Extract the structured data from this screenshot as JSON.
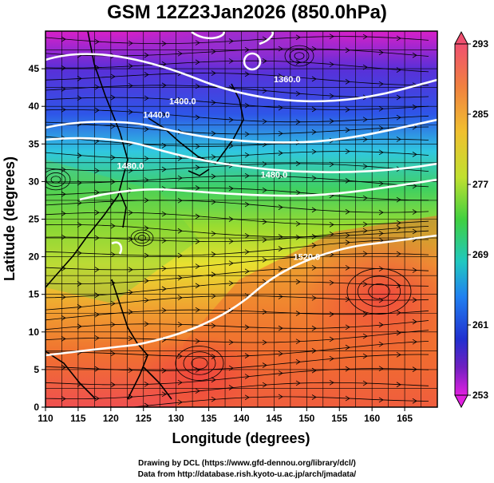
{
  "title": "GSM 12Z23Jan2026 (850.0hPa)",
  "map": {
    "x_axis": {
      "label": "Longitude (degrees)",
      "range": [
        110,
        170
      ],
      "ticks": [
        "110",
        "115",
        "120",
        "125",
        "130",
        "135",
        "140",
        "145",
        "150",
        "155",
        "160",
        "165"
      ]
    },
    "y_axis": {
      "label": "Latitude (degrees)",
      "range": [
        0,
        50
      ],
      "ticks": [
        "0",
        "5",
        "10",
        "15",
        "20",
        "25",
        "30",
        "35",
        "40",
        "45"
      ]
    },
    "grid_spacing_deg": 2.5,
    "field": "temperature shaded, geopotential height contours (white), streamlines (black)",
    "contour_labels": [
      {
        "text": "1360.0",
        "lon": 147,
        "lat": 43.2
      },
      {
        "text": "1400.0",
        "lon": 131,
        "lat": 40.3
      },
      {
        "text": "1440.0",
        "lon": 127,
        "lat": 38.5
      },
      {
        "text": "1480.0",
        "lon": 123,
        "lat": 31.7
      },
      {
        "text": "1480.0",
        "lon": 145,
        "lat": 30.5
      },
      {
        "text": "1520.0",
        "lon": 150,
        "lat": 19.6
      }
    ]
  },
  "colorbar": {
    "labels": [
      "293",
      "285",
      "277",
      "269",
      "261",
      "253"
    ],
    "min": 253,
    "max": 293,
    "colors": [
      "#f05070",
      "#f0a030",
      "#f0e030",
      "#40d040",
      "#20c0c0",
      "#2080f0",
      "#2030d0",
      "#7020c0",
      "#e020e0"
    ]
  },
  "credits": {
    "line1": "Drawing by DCL (https://www.gfd-dennou.org/library/dcl/)",
    "line2": "Data from http://database.rish.kyoto-u.ac.jp/arch/jmadata/"
  }
}
